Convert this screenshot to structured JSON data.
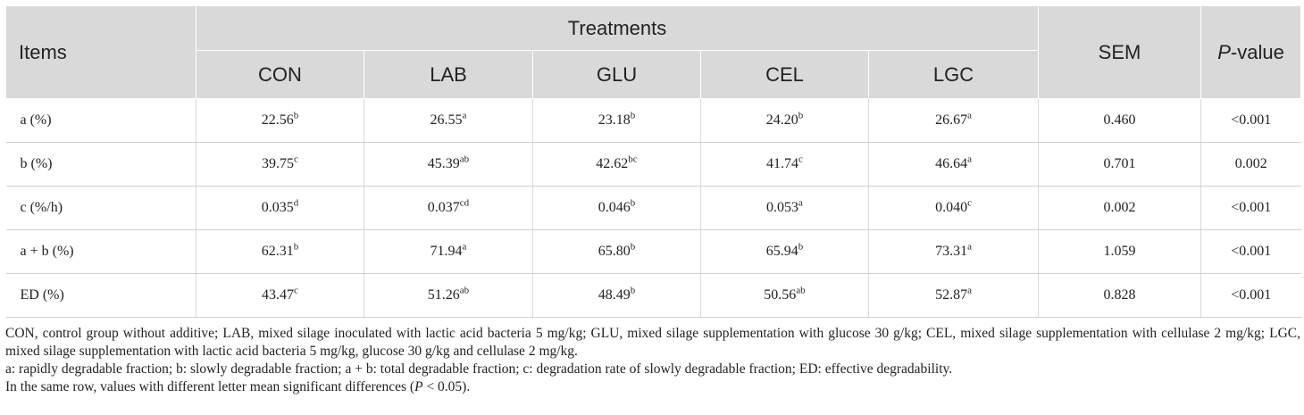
{
  "table": {
    "header": {
      "items": "Items",
      "treatments": "Treatments",
      "sem": "SEM",
      "pvalue_italic": "P",
      "pvalue_rest": "-value",
      "groups": [
        "CON",
        "LAB",
        "GLU",
        "CEL",
        "LGC"
      ]
    },
    "rows": [
      {
        "label": "a (%)",
        "cells": [
          [
            "22.56",
            "b"
          ],
          [
            "26.55",
            "a"
          ],
          [
            "23.18",
            "b"
          ],
          [
            "24.20",
            "b"
          ],
          [
            "26.67",
            "a"
          ]
        ],
        "sem": "0.460",
        "p": "<0.001"
      },
      {
        "label": "b (%)",
        "cells": [
          [
            "39.75",
            "c"
          ],
          [
            "45.39",
            "ab"
          ],
          [
            "42.62",
            "bc"
          ],
          [
            "41.74",
            "c"
          ],
          [
            "46.64",
            "a"
          ]
        ],
        "sem": "0.701",
        "p": "0.002"
      },
      {
        "label": "c (%/h)",
        "cells": [
          [
            "0.035",
            "d"
          ],
          [
            "0.037",
            "cd"
          ],
          [
            "0.046",
            "b"
          ],
          [
            "0.053",
            "a"
          ],
          [
            "0.040",
            "c"
          ]
        ],
        "sem": "0.002",
        "p": "<0.001"
      },
      {
        "label": "a + b (%)",
        "cells": [
          [
            "62.31",
            "b"
          ],
          [
            "71.94",
            "a"
          ],
          [
            "65.80",
            "b"
          ],
          [
            "65.94",
            "b"
          ],
          [
            "73.31",
            "a"
          ]
        ],
        "sem": "1.059",
        "p": "<0.001"
      },
      {
        "label": "ED (%)",
        "cells": [
          [
            "43.47",
            "c"
          ],
          [
            "51.26",
            "ab"
          ],
          [
            "48.49",
            "b"
          ],
          [
            "50.56",
            "ab"
          ],
          [
            "52.87",
            "a"
          ]
        ],
        "sem": "0.828",
        "p": "<0.001"
      }
    ]
  },
  "notes": {
    "abbreviations": "CON, control group without additive; LAB, mixed silage inoculated with lactic acid bacteria 5 mg/kg; GLU, mixed silage supplementation with glucose 30 g/kg; CEL, mixed silage supplementation with cellulase 2 mg/kg; LGC, mixed silage supplementation with lactic acid bacteria 5 mg/kg, glucose 30 g/kg and cellulase 2 mg/kg.",
    "definitions": "a: rapidly degradable fraction; b: slowly degradable fraction; a + b: total degradable fraction; c: degradation rate of slowly degradable fraction; ED: effective degradability.",
    "significance_pre": "In the same row, values with different letter mean significant differences (",
    "significance_p": "P",
    "significance_post": " < 0.05)."
  }
}
